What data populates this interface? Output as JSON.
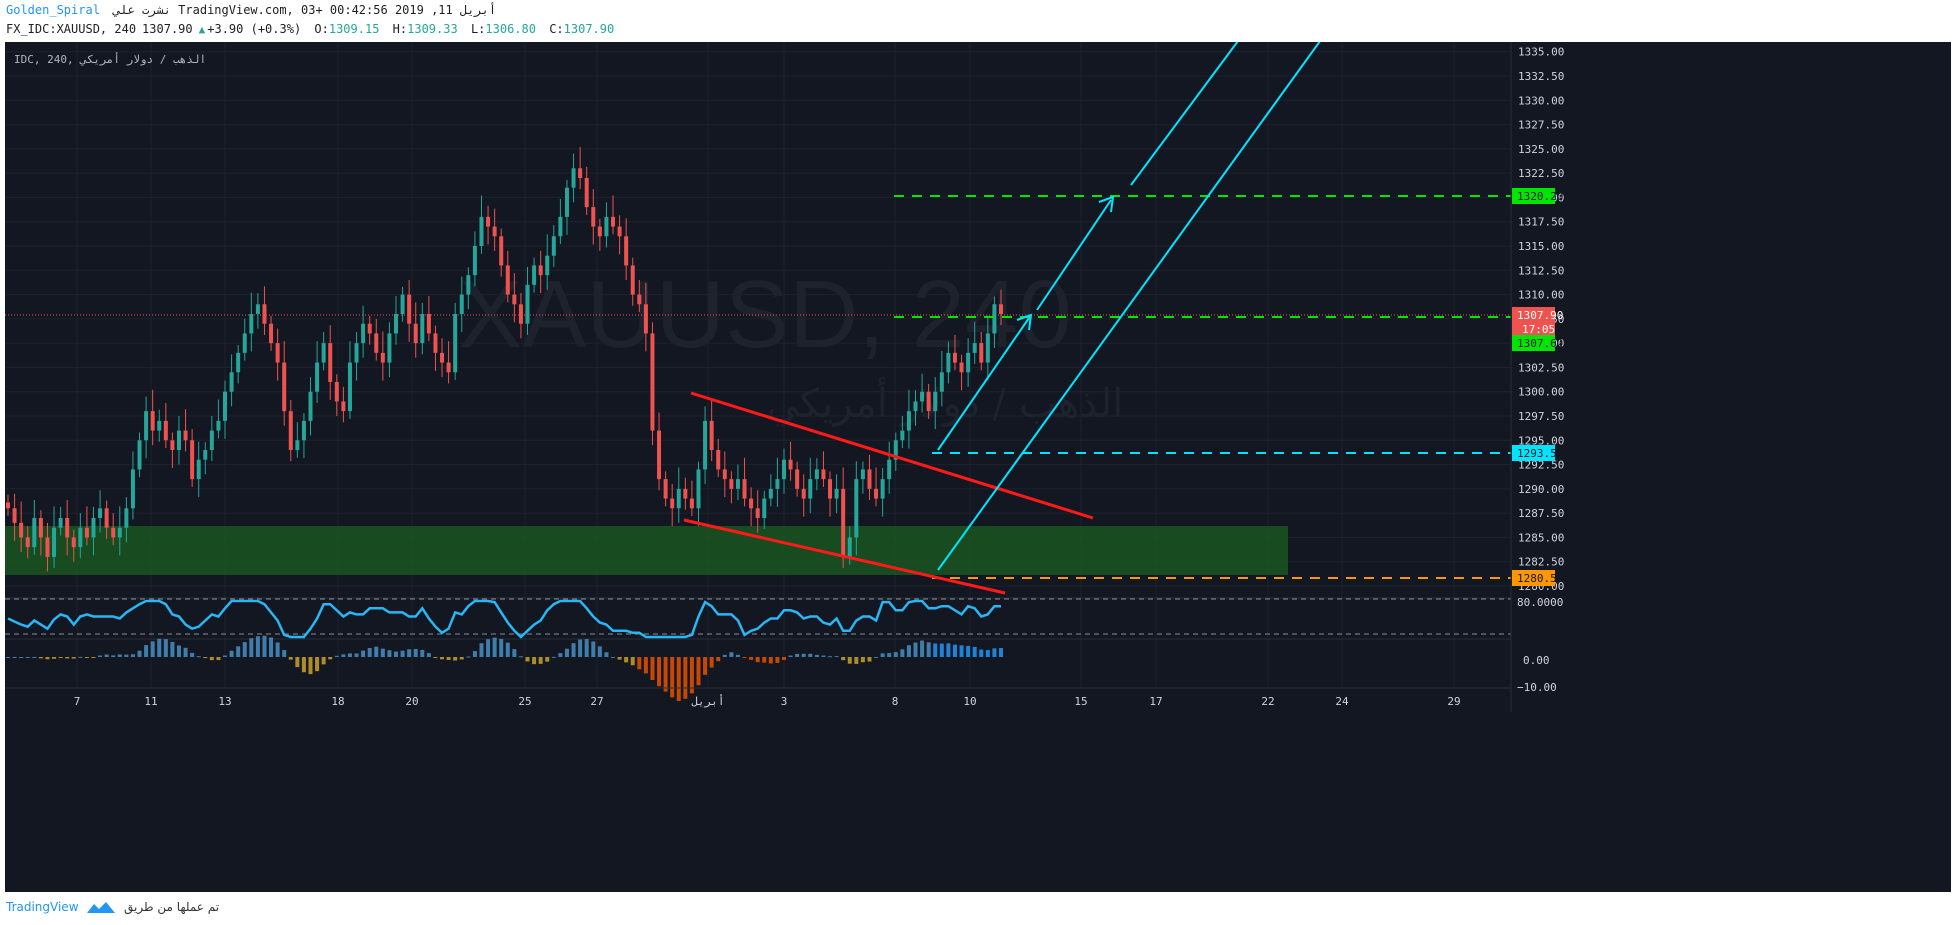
{
  "header": {
    "author": "Golden_Spiral",
    "published": "نشرت علي TradingView.com, أبريل 11, 2019 00:42:56 +03",
    "symbol": "FX_IDC:XAUUSD, 240",
    "last": "1307.90",
    "change": "+3.90 (+0.3%)",
    "open_label": "O:",
    "open": "1309.15",
    "high_label": "H:",
    "high": "1309.33",
    "low_label": "L:",
    "low": "1306.80",
    "close_label": "C:",
    "close": "1307.90"
  },
  "pane_legend": "IDC, 240, الذهب / دولار أمريكي",
  "watermark": {
    "symbol": "XAUUSD, 240",
    "description": "الذهب / دولار أمريكي"
  },
  "price_axis": {
    "ticks": [
      "1335.00",
      "1332.50",
      "1330.00",
      "1327.50",
      "1325.00",
      "1322.50",
      "1320.00",
      "1317.50",
      "1315.00",
      "1312.50",
      "1310.00",
      "1307.50",
      "1305.00",
      "1302.50",
      "1300.00",
      "1297.50",
      "1295.00",
      "1292.50",
      "1290.00",
      "1287.50",
      "1285.00",
      "1282.50",
      "1280.00"
    ],
    "labels": {
      "target_high": "1320.20",
      "current": "1307.90",
      "countdown": "17:05",
      "level_mid": "1307.62",
      "level_cyan": "1293.50",
      "level_orange": "1280.50"
    }
  },
  "rsi_axis": {
    "tick": "80.0000"
  },
  "macd_axis": {
    "ticks": [
      "0.00",
      "−10.00"
    ]
  },
  "time_axis": {
    "ticks": [
      "7",
      "11",
      "13",
      "18",
      "20",
      "25",
      "27",
      "أبريل",
      "3",
      "8",
      "10",
      "15",
      "17",
      "22",
      "24",
      "29"
    ]
  },
  "colors": {
    "background": "#131722",
    "grid": "#1e222d",
    "up": "#26a69a",
    "down": "#ef5350",
    "demand_zone": "#1b5e20",
    "channel": "#ff1a1a",
    "cyan": "#00e5ff",
    "green_level": "#00e600",
    "orange_level": "#ff9800",
    "rsi_line": "#29b6f6"
  },
  "chart_data": {
    "type": "candlestick",
    "symbol": "XAUUSD",
    "timeframe": "240",
    "y_range": [
      1280.0,
      1336.0
    ],
    "last_ohlc": {
      "open": 1309.15,
      "high": 1309.33,
      "low": 1306.8,
      "close": 1307.9
    },
    "horizontal_levels": [
      {
        "value": 1320.2,
        "style": "dashed",
        "color": "green"
      },
      {
        "value": 1307.62,
        "style": "dashed",
        "color": "green"
      },
      {
        "value": 1293.5,
        "style": "dashed",
        "color": "cyan"
      },
      {
        "value": 1280.5,
        "style": "dashed",
        "color": "orange"
      }
    ],
    "zone": {
      "from": 1281.0,
      "to": 1286.2,
      "color": "green"
    },
    "close_path": [
      1288,
      1286.5,
      1285,
      1284,
      1287,
      1285,
      1283,
      1286,
      1287,
      1285,
      1284,
      1286,
      1285,
      1287,
      1288,
      1286,
      1285,
      1286,
      1288,
      1292,
      1295,
      1298,
      1296,
      1297,
      1295,
      1294,
      1296,
      1295,
      1291,
      1293,
      1294,
      1296,
      1297,
      1300,
      1302,
      1304,
      1306,
      1308,
      1309,
      1307,
      1305,
      1303,
      1298,
      1294,
      1295,
      1297,
      1300,
      1303,
      1305,
      1301,
      1299,
      1298,
      1303,
      1305,
      1307,
      1306,
      1304,
      1303,
      1306,
      1308,
      1310,
      1307,
      1305,
      1308,
      1306,
      1304,
      1303,
      1302,
      1308,
      1310,
      1312,
      1315,
      1318,
      1317,
      1316,
      1313,
      1310,
      1309,
      1307,
      1311,
      1313,
      1312,
      1314,
      1316,
      1318,
      1321,
      1323,
      1322,
      1319,
      1317,
      1316,
      1318,
      1317,
      1316,
      1313,
      1310,
      1309,
      1306,
      1296,
      1291,
      1289,
      1288,
      1290,
      1289,
      1288,
      1292,
      1297,
      1294,
      1292,
      1291,
      1290,
      1291,
      1289,
      1288,
      1287,
      1289,
      1290,
      1291,
      1293,
      1292,
      1290,
      1289,
      1291,
      1292,
      1291,
      1289,
      1290,
      1283,
      1285,
      1291,
      1292,
      1290,
      1289,
      1291,
      1293,
      1295,
      1296,
      1298,
      1299,
      1300,
      1298,
      1300,
      1302,
      1304,
      1303,
      1302,
      1304,
      1305,
      1303,
      1306,
      1309,
      1308
    ],
    "rsi": {
      "upper": 80,
      "lower": 20
    }
  }
}
